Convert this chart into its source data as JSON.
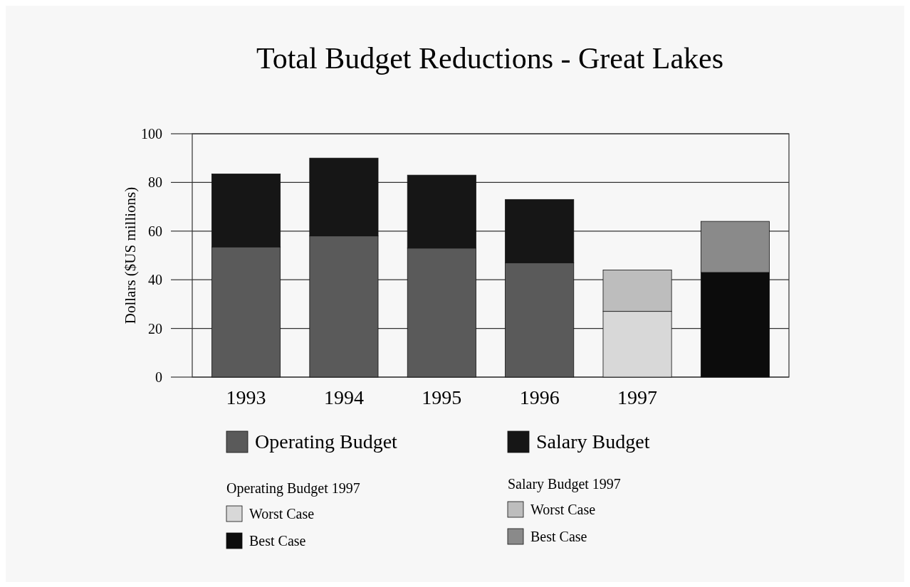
{
  "chart_data": {
    "type": "bar",
    "title": "Total Budget Reductions  -  Great Lakes",
    "ylabel": "Dollars ($US millions)",
    "categories": [
      "1993",
      "1994",
      "1995",
      "1996",
      "1997",
      null
    ],
    "stacked": true,
    "ylim": [
      0,
      100
    ],
    "yticks": [
      0,
      20,
      40,
      60,
      80,
      100
    ],
    "grid": "y",
    "legend": "bottom",
    "annotations": [
      "Operating Budget 1997",
      "Salary Budget 1997"
    ],
    "series": [
      {
        "name": "Operating Budget",
        "color": "#5a5a5a",
        "values": [
          53.5,
          58,
          53,
          47,
          null,
          null
        ]
      },
      {
        "name": "Salary Budget",
        "color": "#161616",
        "values": [
          30,
          32,
          30,
          26,
          null,
          null
        ]
      },
      {
        "name": "Worst Case",
        "color": "#d8d8d8",
        "values": [
          null,
          null,
          null,
          null,
          27,
          null
        ]
      },
      {
        "name": "Best Case",
        "color": "#0c0c0c",
        "values": [
          null,
          null,
          null,
          null,
          null,
          43
        ]
      },
      {
        "name": "Worst Case",
        "color": "#bdbdbd",
        "values": [
          null,
          null,
          null,
          null,
          17,
          null
        ]
      },
      {
        "name": "Best Case",
        "color": "#8a8a8a",
        "values": [
          null,
          null,
          null,
          null,
          null,
          21
        ]
      }
    ]
  }
}
